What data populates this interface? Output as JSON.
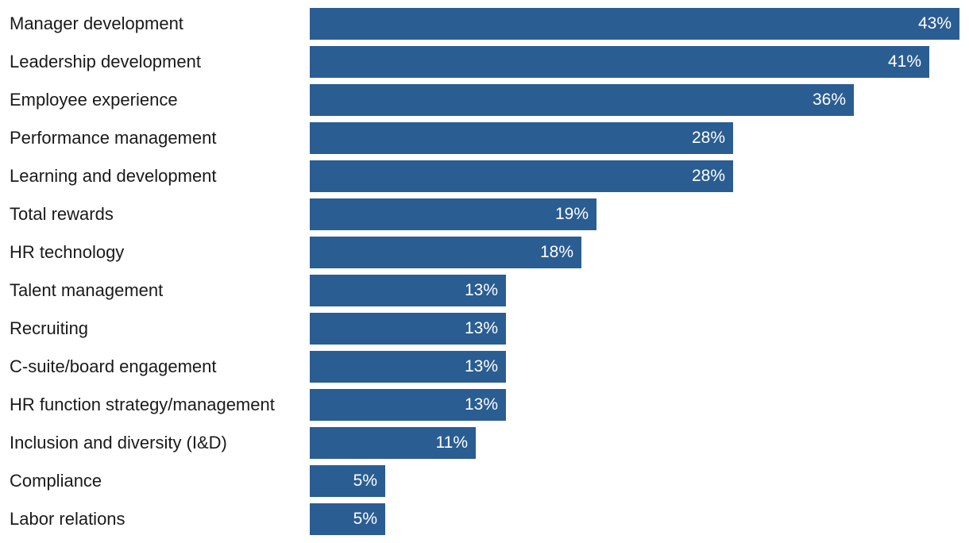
{
  "chart_data": {
    "type": "bar",
    "orientation": "horizontal",
    "categories": [
      "Manager development",
      "Leadership development",
      "Employee experience",
      "Performance management",
      "Learning and development",
      "Total rewards",
      "HR technology",
      "Talent management",
      "Recruiting",
      "C-suite/board engagement",
      "HR function strategy/management",
      "Inclusion and diversity (I&D)",
      "Compliance",
      "Labor relations"
    ],
    "values": [
      43,
      41,
      36,
      28,
      28,
      19,
      18,
      13,
      13,
      13,
      13,
      11,
      5,
      5
    ],
    "value_labels": [
      "43%",
      "41%",
      "36%",
      "28%",
      "28%",
      "19%",
      "18%",
      "13%",
      "13%",
      "13%",
      "13%",
      "11%",
      "5%",
      "5%"
    ],
    "unit": "%",
    "title": "",
    "xlabel": "",
    "ylabel": "",
    "xlim": [
      0,
      43
    ],
    "grid": false,
    "legend": "none",
    "bar_color": "#2a5d92",
    "value_label_color": "#ffffff",
    "category_label_color": "#1a1a1a"
  }
}
